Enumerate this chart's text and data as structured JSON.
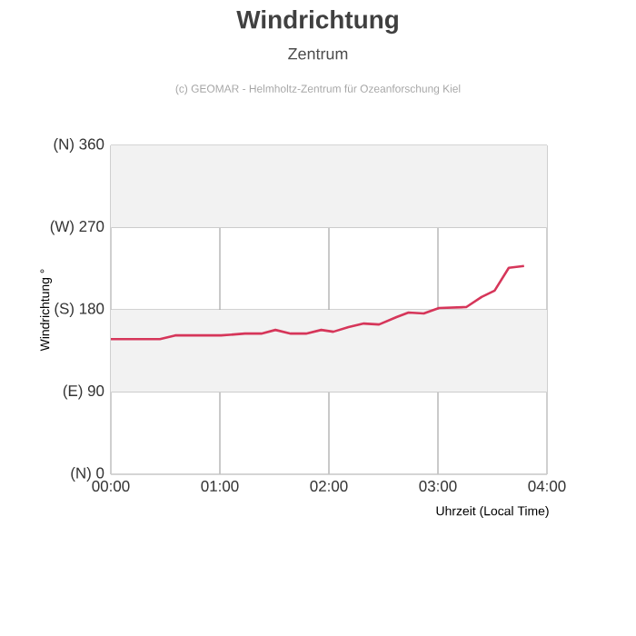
{
  "chart_data": {
    "type": "line",
    "title": "Windrichtung",
    "subtitle": "Zentrum",
    "annotations": [
      "(c) GEOMAR - Helmholtz-Zentrum für Ozeanforschung Kiel"
    ],
    "xlabel": "Uhrzeit (Local Time)",
    "ylabel": "Windrichtung °",
    "series": [
      {
        "color": "#d6365a",
        "x": [
          0,
          0.45,
          0.59,
          1.01,
          1.23,
          1.38,
          1.51,
          1.65,
          1.79,
          1.93,
          2.04,
          2.18,
          2.32,
          2.46,
          2.62,
          2.73,
          2.87,
          3.01,
          3.26,
          3.4,
          3.52,
          3.65,
          3.79
        ],
        "values": [
          148,
          148,
          152,
          152,
          154,
          154,
          158,
          154,
          154,
          158,
          156,
          161,
          165,
          164,
          172,
          177,
          176,
          182,
          183,
          194,
          201,
          226,
          228
        ]
      }
    ],
    "xlim": [
      0,
      4
    ],
    "xticks": [
      {
        "value": 0,
        "label": "00:00"
      },
      {
        "value": 1,
        "label": "01:00"
      },
      {
        "value": 2,
        "label": "02:00"
      },
      {
        "value": 3,
        "label": "03:00"
      },
      {
        "value": 4,
        "label": "04:00"
      }
    ],
    "ylim": [
      0,
      360
    ],
    "yticks": [
      {
        "value": 0,
        "label": "(N) 0"
      },
      {
        "value": 90,
        "label": "(E) 90"
      },
      {
        "value": 180,
        "label": "(S) 180"
      },
      {
        "value": 270,
        "label": "(W) 270"
      },
      {
        "value": 360,
        "label": "(N) 360"
      }
    ],
    "bands": [
      {
        "axis": "y",
        "from": 90,
        "to": 180,
        "color": "#f2f2f2"
      },
      {
        "axis": "y",
        "from": 270,
        "to": 360,
        "color": "#f2f2f2"
      }
    ],
    "grid": true,
    "marker": "none",
    "line_style": "solid"
  }
}
